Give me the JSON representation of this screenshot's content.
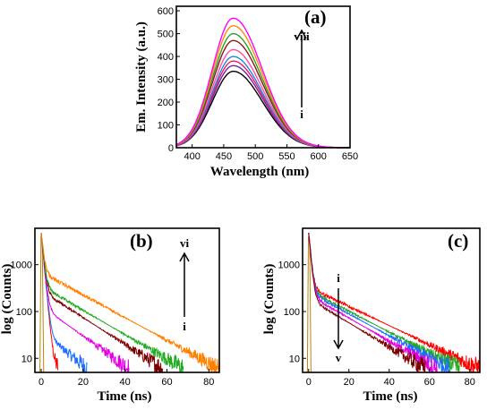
{
  "chart_data": [
    {
      "panel": "(a)",
      "type": "line",
      "xlabel": "Wavelength (nm)",
      "ylabel": "Em. Intensity (a.u.)",
      "xlim": [
        375,
        650
      ],
      "ylim": [
        0,
        620
      ],
      "xticks": [
        400,
        450,
        500,
        550,
        600,
        650
      ],
      "yticks": [
        0,
        100,
        200,
        300,
        400,
        500,
        600
      ],
      "peak_wavelength": 465,
      "series": [
        {
          "color": "#000000",
          "peak": 335
        },
        {
          "color": "#7b1fa2",
          "peak": 360
        },
        {
          "color": "#e91e63",
          "peak": 380
        },
        {
          "color": "#1e88e5",
          "peak": 400
        },
        {
          "color": "#ff4fa3",
          "peak": 430
        },
        {
          "color": "#8b1a1a",
          "peak": 470
        },
        {
          "color": "#2e9e2e",
          "peak": 500
        },
        {
          "color": "#ff8c00",
          "peak": 535
        },
        {
          "color": "#ff00ff",
          "peak": 568
        }
      ],
      "annotation": {
        "from": "i",
        "to": "viii",
        "direction": "up"
      },
      "grid": false
    },
    {
      "panel": "(b)",
      "type": "line",
      "xlabel": "Time (ns)",
      "ylabel": "log (Counts)",
      "yscale": "log",
      "xlim": [
        -3,
        85
      ],
      "ylim": [
        5,
        6000
      ],
      "xticks": [
        0,
        20,
        40,
        60,
        80
      ],
      "yticks": [
        10,
        100,
        1000
      ],
      "series": [
        {
          "color": "#ff0000",
          "tail_at_5ns": 6,
          "end_ns": 8
        },
        {
          "color": "#1e6eff",
          "tail_at_5ns": 25,
          "end_ns": 22
        },
        {
          "color": "#e000e0",
          "tail_at_5ns": 90,
          "end_ns": 42
        },
        {
          "color": "#7a0000",
          "tail_at_5ns": 200,
          "end_ns": 58
        },
        {
          "color": "#22aa22",
          "tail_at_5ns": 260,
          "end_ns": 68
        },
        {
          "color": "#ff7f00",
          "tail_at_5ns": 520,
          "end_ns": 85
        }
      ],
      "irf_color": "#b8860b",
      "annotation": {
        "from": "i",
        "to": "vi",
        "direction": "up"
      },
      "grid": false
    },
    {
      "panel": "(c)",
      "type": "line",
      "xlabel": "Time (ns)",
      "ylabel": "log (Counts)",
      "yscale": "log",
      "xlim": [
        -3,
        85
      ],
      "ylim": [
        5,
        6000
      ],
      "xticks": [
        0,
        20,
        40,
        60,
        80
      ],
      "yticks": [
        10,
        100,
        1000
      ],
      "series": [
        {
          "color": "#ff0000",
          "tail_at_5ns": 260,
          "end_ns": 85
        },
        {
          "color": "#22aa22",
          "tail_at_5ns": 220,
          "end_ns": 75
        },
        {
          "color": "#1e6eff",
          "tail_at_5ns": 200,
          "end_ns": 70
        },
        {
          "color": "#e000e0",
          "tail_at_5ns": 170,
          "end_ns": 64
        },
        {
          "color": "#7a0000",
          "tail_at_5ns": 140,
          "end_ns": 58
        }
      ],
      "irf_color": "#b8860b",
      "annotation": {
        "from": "i",
        "to": "v",
        "direction": "down"
      },
      "grid": false
    }
  ]
}
